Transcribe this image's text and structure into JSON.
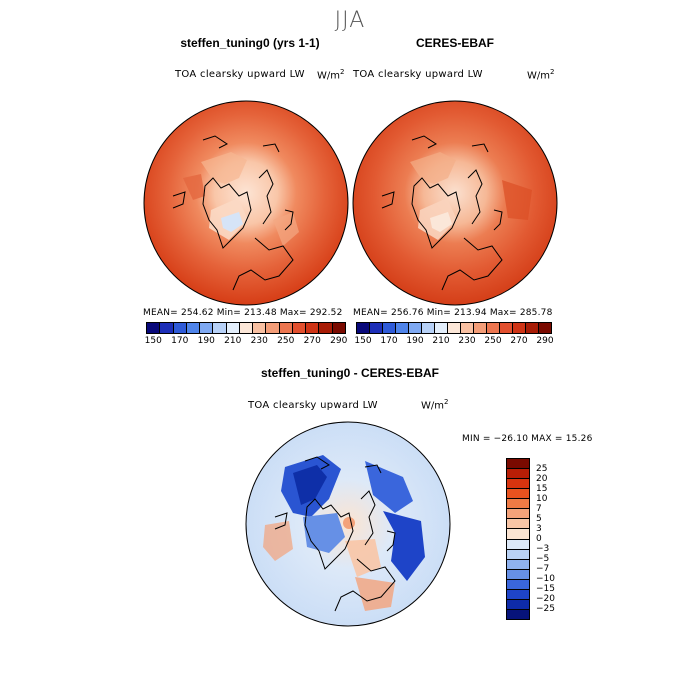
{
  "season": "JJA",
  "panels": {
    "model": {
      "title": "steffen_tuning0 (yrs 1-1)",
      "variable": "TOA clearsky upward LW",
      "units": "W/m",
      "units_sup": "2",
      "stats": "MEAN= 254.62   Min= 213.48   Max= 292.52"
    },
    "obs": {
      "title": "CERES-EBAF",
      "variable": "TOA clearsky upward LW",
      "units": "W/m",
      "units_sup": "2",
      "stats": "MEAN= 256.76   Min= 213.94   Max= 285.78"
    },
    "diff": {
      "title": "steffen_tuning0 - CERES-EBAF",
      "variable": "TOA clearsky upward LW",
      "units": "W/m",
      "units_sup": "2",
      "stats": "MIN = −26.10 MAX =  15.26"
    }
  },
  "colorbar_top": {
    "colors": [
      "#08087a",
      "#1d2fb8",
      "#2f5bd8",
      "#4f84ea",
      "#7fa9f2",
      "#b7d1f7",
      "#e3eefb",
      "#fce7d8",
      "#f8c0a2",
      "#f39d78",
      "#ec7650",
      "#e2502f",
      "#cf3416",
      "#a81c06",
      "#7a0a00"
    ],
    "ticks": [
      "150",
      "170",
      "190",
      "210",
      "230",
      "250",
      "270",
      "290"
    ]
  },
  "colorbar_diff": {
    "colors": [
      "#7a0a00",
      "#b81e06",
      "#d7340f",
      "#e8521f",
      "#ef7a45",
      "#f4a27a",
      "#f8c5a6",
      "#fbe4d2",
      "#dde9f8",
      "#b9d2f5",
      "#8fb2ef",
      "#6690e6",
      "#3a66dc",
      "#1e44c8",
      "#0e2ba8",
      "#07137a"
    ],
    "ticks": [
      "25",
      "20",
      "15",
      "10",
      "7",
      "5",
      "3",
      "0",
      "−3",
      "−5",
      "−7",
      "−10",
      "−15",
      "−20",
      "−25"
    ]
  }
}
